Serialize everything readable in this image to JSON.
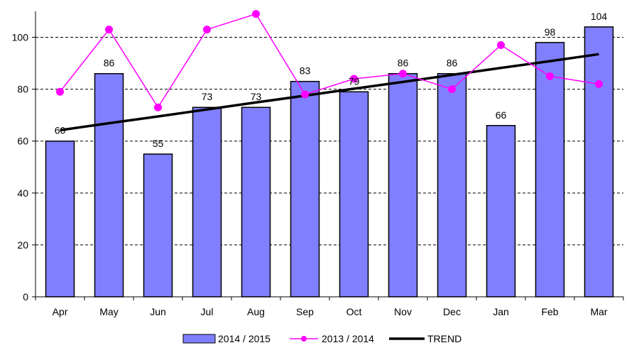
{
  "chart_data": {
    "type": "bar",
    "categories": [
      "Apr",
      "May",
      "Jun",
      "Jul",
      "Aug",
      "Sep",
      "Oct",
      "Nov",
      "Dec",
      "Jan",
      "Feb",
      "Mar"
    ],
    "series": [
      {
        "name": "2014 / 2015",
        "kind": "bar",
        "color": "#8080ff",
        "values": [
          60,
          86,
          55,
          73,
          73,
          83,
          79,
          86,
          86,
          66,
          98,
          104
        ],
        "show_labels": true
      },
      {
        "name": "2013 / 2014",
        "kind": "line",
        "color": "#ff00ff",
        "values": [
          79,
          103,
          73,
          103,
          109,
          78,
          84,
          86,
          80,
          97,
          85,
          82
        ]
      },
      {
        "name": "TREND",
        "kind": "trendline",
        "color": "#000000",
        "values": [
          64.2,
          66.9,
          69.5,
          72.2,
          74.9,
          77.5,
          80.2,
          82.8,
          85.5,
          88.2,
          90.8,
          93.5
        ]
      }
    ],
    "ylim": [
      0,
      110
    ],
    "yticks": [
      0,
      20,
      40,
      60,
      80,
      100
    ],
    "grid": true,
    "legend": "bottom",
    "title": "",
    "xlabel": "",
    "ylabel": ""
  }
}
